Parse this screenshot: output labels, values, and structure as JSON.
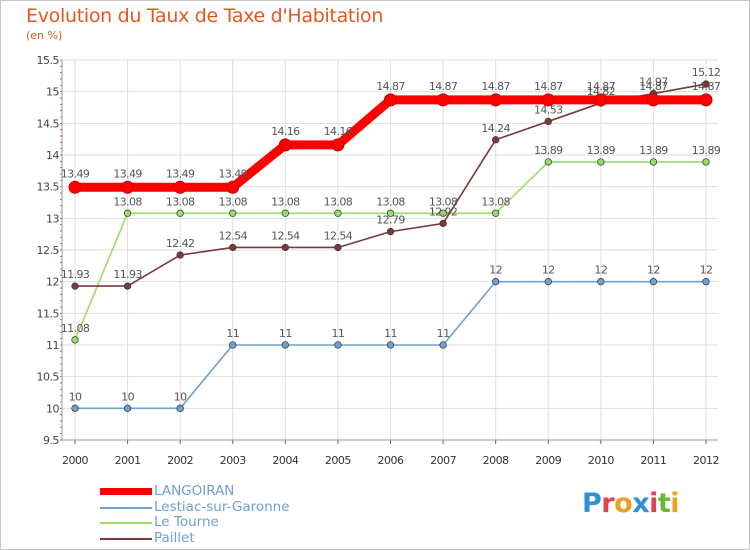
{
  "header": {
    "title": "Evolution du Taux de Taxe d'Habitation",
    "unit": "(en %)"
  },
  "chart_data": {
    "type": "line",
    "title": "Evolution du Taux de Taxe d'Habitation",
    "ylabel": "(en %)",
    "xlabel": "",
    "categories": [
      "2000",
      "2001",
      "2002",
      "2003",
      "2004",
      "2005",
      "2006",
      "2007",
      "2008",
      "2009",
      "2010",
      "2011",
      "2012"
    ],
    "ylim": [
      9.5,
      15.5
    ],
    "yticks": [
      "9.5",
      "10",
      "10.5",
      "11",
      "11.5",
      "12",
      "12.5",
      "13",
      "13.5",
      "14",
      "14.5",
      "15",
      "15.5"
    ],
    "grid": true,
    "series": [
      {
        "name": "LANGOIRAN",
        "color": "#ff0000",
        "values": [
          13.49,
          13.49,
          13.49,
          13.49,
          14.16,
          14.16,
          14.87,
          14.87,
          14.87,
          14.87,
          14.87,
          14.87,
          14.87
        ],
        "labels": [
          "13.49",
          "13.49",
          "13.49",
          "13.49",
          "14.16",
          "14.16",
          "14.87",
          "14.87",
          "14.87",
          "14.87",
          "14.87",
          "14.87",
          "14.87"
        ]
      },
      {
        "name": "Lestiac-sur-Garonne",
        "color": "#6ea0d0",
        "values": [
          10,
          10,
          10,
          11,
          11,
          11,
          11,
          11,
          12,
          12,
          12,
          12,
          12
        ],
        "labels": [
          "10",
          "10",
          "10",
          "11",
          "11",
          "11",
          "11",
          "11",
          "12",
          "12",
          "12",
          "12",
          "12"
        ]
      },
      {
        "name": "Le Tourne",
        "color": "#99dd66",
        "values": [
          11.08,
          13.08,
          13.08,
          13.08,
          13.08,
          13.08,
          13.08,
          13.08,
          13.08,
          13.89,
          13.89,
          13.89,
          13.89
        ],
        "labels": [
          "11.08",
          "13.08",
          "13.08",
          "13.08",
          "13.08",
          "13.08",
          "13.08",
          "13.08",
          "13.08",
          "13.89",
          "13.89",
          "13.89",
          "13.89"
        ]
      },
      {
        "name": "Paillet",
        "color": "#7a3a3a",
        "values": [
          11.93,
          11.93,
          12.42,
          12.54,
          12.54,
          12.54,
          12.79,
          12.92,
          14.24,
          14.53,
          14.82,
          14.97,
          15.12
        ],
        "labels": [
          "11.93",
          "11.93",
          "12.42",
          "12.54",
          "12.54",
          "12.54",
          "12.79",
          "12.92",
          "14.24",
          "14.53",
          "14.82",
          "14.97",
          "15.12"
        ]
      }
    ]
  },
  "legend": {
    "items": [
      {
        "label": "LANGOIRAN",
        "color": "#ff0000"
      },
      {
        "label": "Lestiac-sur-Garonne",
        "color": "#6ea0d0"
      },
      {
        "label": "Le Tourne",
        "color": "#99dd66"
      },
      {
        "label": "Paillet",
        "color": "#7a3a3a"
      }
    ]
  },
  "logo": {
    "letters": [
      "P",
      "r",
      "o",
      "x",
      "i",
      "t",
      "i"
    ],
    "colors": [
      "#2f8fd8",
      "#e04050",
      "#f0a020",
      "#2f8fd8",
      "#e04050",
      "#66bb33",
      "#f0a020"
    ]
  }
}
